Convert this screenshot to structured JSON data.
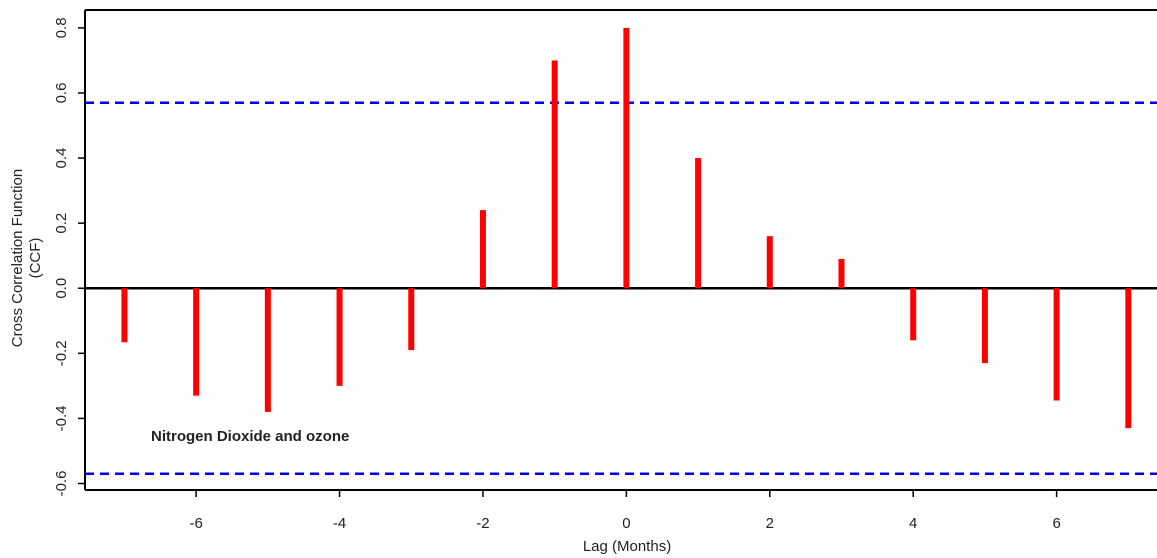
{
  "chart_data": {
    "type": "bar",
    "xlabel": "Lag (Months)",
    "ylabel": [
      "Cross Correlation Function",
      "(CCF)"
    ],
    "annotation": "Nitrogen Dioxide and ozone",
    "x": [
      -7,
      -6,
      -5,
      -4,
      -3,
      -2,
      -1,
      0,
      1,
      2,
      3,
      4,
      5,
      6,
      7
    ],
    "values": [
      -0.166,
      -0.33,
      -0.38,
      -0.3,
      -0.19,
      0.24,
      0.7,
      0.8,
      0.4,
      0.16,
      0.09,
      -0.16,
      -0.23,
      -0.345,
      -0.43
    ],
    "color": "#ff0000",
    "conf_limits": [
      0.57,
      -0.57
    ],
    "conf_color": "#0000ee",
    "xlim": [
      -7.55,
      7.4
    ],
    "ylim": [
      -0.62,
      0.855
    ],
    "xticks": [
      -6,
      -4,
      -2,
      0,
      2,
      4,
      6
    ],
    "yticks": [
      {
        "value": -0.6,
        "label": "-0.6"
      },
      {
        "value": -0.4,
        "label": "-0.4"
      },
      {
        "value": -0.2,
        "label": "-0.2"
      },
      {
        "value": 0,
        "label": "0.0"
      },
      {
        "value": 0.2,
        "label": "0.2"
      },
      {
        "value": 0.4,
        "label": "0.4"
      },
      {
        "value": 0.6,
        "label": "0.6"
      },
      {
        "value": 0.8,
        "label": "0.8"
      }
    ]
  }
}
